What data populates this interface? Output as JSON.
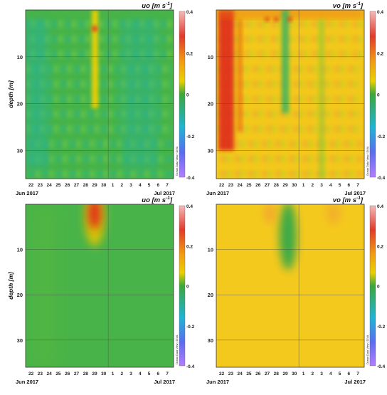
{
  "chart_data": [
    {
      "type": "heatmap",
      "title": "uo [m s",
      "title_sup": "-1",
      "ylabel": "depth [m]",
      "y_ticks": [
        10,
        20,
        30
      ],
      "ylim": [
        0,
        36
      ],
      "y_reversed": true,
      "x_tick_labels": [
        "22",
        "23",
        "24",
        "25",
        "26",
        "27",
        "28",
        "29",
        "30",
        "1",
        "2",
        "3",
        "4",
        "5",
        "6",
        "7"
      ],
      "x_group_labels": [
        "Jun 2017",
        "Jul 2017"
      ],
      "colorbar": {
        "min": -0.4,
        "max": 0.4,
        "ticks": [
          "0.4",
          "0.2",
          "0",
          "-0.2",
          "-0.4"
        ]
      },
      "watermark": "Ocean Data View / DIVA",
      "grid": true,
      "features": [
        {
          "day": "Jun 29",
          "depth_range": [
            0,
            21
          ],
          "value": 0.22
        },
        {
          "day": "all",
          "depth_range": [
            0,
            36
          ],
          "value": 0.05
        }
      ]
    },
    {
      "type": "heatmap",
      "title": "vo [m s",
      "title_sup": "-1",
      "ylabel": "",
      "y_ticks": [
        10,
        20,
        30
      ],
      "ylim": [
        0,
        36
      ],
      "y_reversed": true,
      "x_tick_labels": [
        "22",
        "23",
        "24",
        "25",
        "26",
        "27",
        "28",
        "29",
        "30",
        "1",
        "2",
        "3",
        "4",
        "5",
        "6",
        "7"
      ],
      "x_group_labels": [
        "Jun 2017",
        "Jul 2017"
      ],
      "colorbar": {
        "min": -0.4,
        "max": 0.4,
        "ticks": [
          "0.4",
          "0.2",
          "0",
          "-0.2",
          "-0.4"
        ]
      },
      "watermark": "Ocean Data View / DIVA",
      "grid": true,
      "features": [
        {
          "day": "Jun 22",
          "depth_range": [
            0,
            30
          ],
          "value": 0.3
        },
        {
          "day": "Jun 29",
          "depth_range": [
            0,
            22
          ],
          "value": 0.0
        },
        {
          "day": "all",
          "depth_range": [
            0,
            36
          ],
          "value": 0.12
        }
      ]
    },
    {
      "type": "heatmap",
      "title": "uo [m s",
      "title_sup": "-1",
      "ylabel": "depth [m]",
      "y_ticks": [
        10,
        20,
        30
      ],
      "ylim": [
        0,
        36
      ],
      "y_reversed": true,
      "x_tick_labels": [
        "22",
        "23",
        "24",
        "25",
        "26",
        "27",
        "28",
        "29",
        "30",
        "1",
        "2",
        "3",
        "4",
        "5",
        "6",
        "7"
      ],
      "x_group_labels": [
        "Jun 2017",
        "Jul 2017"
      ],
      "colorbar": {
        "min": -0.4,
        "max": 0.4,
        "ticks": [
          "0.4",
          "0.2",
          "0",
          "-0.2",
          "-0.4"
        ]
      },
      "watermark": "Ocean Data View / DIVA",
      "grid": true,
      "features": [
        {
          "day": "Jun 29",
          "depth_range": [
            0,
            12
          ],
          "value": 0.25
        },
        {
          "day": "all",
          "depth_range": [
            0,
            36
          ],
          "value": 0.05
        }
      ]
    },
    {
      "type": "heatmap",
      "title": "vo [m s",
      "title_sup": "-1",
      "ylabel": "",
      "y_ticks": [
        10,
        20,
        30
      ],
      "ylim": [
        0,
        36
      ],
      "y_reversed": true,
      "x_tick_labels": [
        "22",
        "23",
        "24",
        "25",
        "26",
        "27",
        "28",
        "29",
        "30",
        "1",
        "2",
        "3",
        "4",
        "5",
        "6",
        "7"
      ],
      "x_group_labels": [
        "Jun 2017",
        "Jul 2017"
      ],
      "colorbar": {
        "min": -0.4,
        "max": 0.4,
        "ticks": [
          "0.4",
          "0.2",
          "0",
          "-0.2",
          "-0.4"
        ]
      },
      "watermark": "Ocean Data View / DIVA",
      "grid": true,
      "features": [
        {
          "day": "Jun 29",
          "depth_range": [
            0,
            15
          ],
          "value": 0.02
        },
        {
          "day": "all",
          "depth_range": [
            0,
            36
          ],
          "value": 0.13
        }
      ]
    }
  ],
  "colors": {
    "c_neg4": "#b57cff",
    "c_neg2": "#1fb4d6",
    "c_zero": "#3aa83a",
    "c_pos1": "#c2d400",
    "c_pos15": "#f2c400",
    "c_pos2": "#f08c00",
    "c_pos3": "#e03020",
    "c_pos4": "#f2a7a7",
    "green_base": "#48b348",
    "yellow_base": "#f4c91e"
  }
}
